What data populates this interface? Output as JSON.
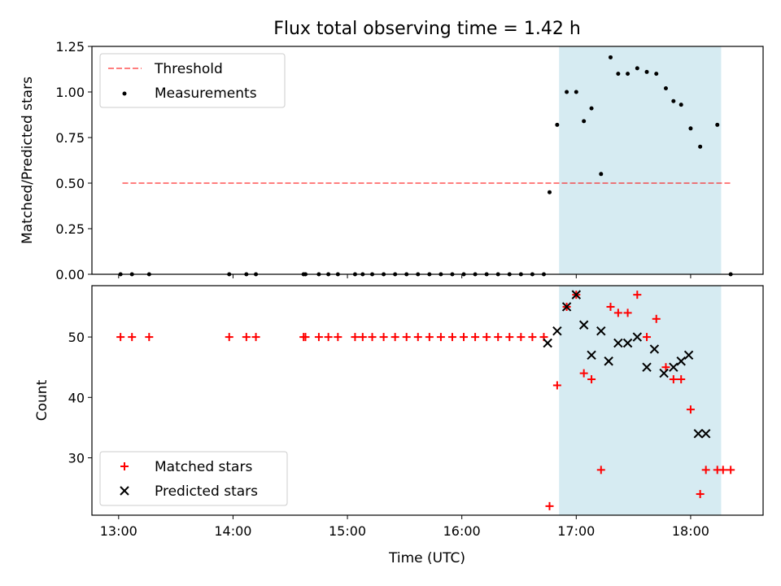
{
  "title": "Flux total observing time = 1.42 h",
  "xlabel": "Time (UTC)",
  "x_ticks": [
    "13:00",
    "14:00",
    "15:00",
    "16:00",
    "17:00",
    "18:00"
  ],
  "colors": {
    "span": "#add8e6",
    "threshold": "#ff0000",
    "measurements": "#000000",
    "matched": "#ff0000",
    "predicted": "#000000"
  },
  "chart_data": [
    {
      "type": "scatter",
      "panel": "top",
      "ylabel": "Matched/Predicted stars",
      "xlim": [
        "12:46",
        "18:38"
      ],
      "ylim": [
        0,
        1.25
      ],
      "y_ticks": [
        "0.00",
        "0.25",
        "0.50",
        "0.75",
        "1.00",
        "1.25"
      ],
      "legend_position": "upper-left",
      "highlight_span": [
        "16:51",
        "18:16"
      ],
      "threshold": {
        "name": "Threshold",
        "value": 0.5,
        "x_range": [
          "13:02",
          "18:22"
        ]
      },
      "series": [
        {
          "name": "Measurements",
          "x": [
            "13:01",
            "13:07",
            "13:16",
            "13:58",
            "14:07",
            "14:12",
            "14:37",
            "14:38",
            "14:45",
            "14:50",
            "14:55",
            "15:04",
            "15:08",
            "15:13",
            "15:19",
            "15:25",
            "15:31",
            "15:37",
            "15:43",
            "15:49",
            "15:55",
            "16:01",
            "16:07",
            "16:13",
            "16:19",
            "16:25",
            "16:31",
            "16:37",
            "16:43",
            "16:46",
            "16:50",
            "16:55",
            "17:00",
            "17:04",
            "17:08",
            "17:13",
            "17:18",
            "17:22",
            "17:27",
            "17:32",
            "17:37",
            "17:42",
            "17:47",
            "17:51",
            "17:55",
            "18:00",
            "18:05",
            "18:14",
            "18:21"
          ],
          "y": [
            0,
            0,
            0,
            0,
            0,
            0,
            0,
            0,
            0,
            0,
            0,
            0,
            0,
            0,
            0,
            0,
            0,
            0,
            0,
            0,
            0,
            0,
            0,
            0,
            0,
            0,
            0,
            0,
            0,
            0.45,
            0.82,
            1.0,
            1.0,
            0.84,
            0.91,
            0.55,
            1.19,
            1.1,
            1.1,
            1.13,
            1.11,
            1.1,
            1.02,
            0.95,
            0.93,
            0.8,
            0.7,
            0.82,
            0
          ]
        }
      ]
    },
    {
      "type": "scatter",
      "panel": "bottom",
      "ylabel": "Count",
      "xlim": [
        "12:46",
        "18:38"
      ],
      "ylim": [
        20.5,
        58.5
      ],
      "y_ticks": [
        "30",
        "40",
        "50"
      ],
      "legend_position": "lower-left",
      "highlight_span": [
        "16:51",
        "18:16"
      ],
      "series": [
        {
          "name": "Matched stars",
          "marker": "plus",
          "x": [
            "13:01",
            "13:07",
            "13:16",
            "13:58",
            "14:07",
            "14:12",
            "14:37",
            "14:38",
            "14:45",
            "14:50",
            "14:55",
            "15:04",
            "15:08",
            "15:13",
            "15:19",
            "15:25",
            "15:31",
            "15:37",
            "15:43",
            "15:49",
            "15:55",
            "16:01",
            "16:07",
            "16:13",
            "16:19",
            "16:25",
            "16:31",
            "16:37",
            "16:43",
            "16:46",
            "16:50",
            "16:55",
            "17:00",
            "17:04",
            "17:08",
            "17:13",
            "17:18",
            "17:22",
            "17:27",
            "17:32",
            "17:37",
            "17:42",
            "17:47",
            "17:51",
            "17:55",
            "18:00",
            "18:05",
            "18:08",
            "18:14",
            "18:17",
            "18:21"
          ],
          "y": [
            50,
            50,
            50,
            50,
            50,
            50,
            50,
            50,
            50,
            50,
            50,
            50,
            50,
            50,
            50,
            50,
            50,
            50,
            50,
            50,
            50,
            50,
            50,
            50,
            50,
            50,
            50,
            50,
            50,
            22,
            42,
            55,
            57,
            44,
            43,
            28,
            55,
            54,
            54,
            57,
            50,
            53,
            45,
            43,
            43,
            38,
            24,
            28,
            28,
            28,
            28
          ]
        },
        {
          "name": "Predicted stars",
          "marker": "cross",
          "x": [
            "16:45",
            "16:50",
            "16:55",
            "17:00",
            "17:04",
            "17:08",
            "17:13",
            "17:17",
            "17:22",
            "17:27",
            "17:32",
            "17:37",
            "17:41",
            "17:46",
            "17:51",
            "17:55",
            "17:59",
            "18:04",
            "18:08"
          ],
          "y": [
            49,
            51,
            55,
            57,
            52,
            47,
            51,
            46,
            49,
            49,
            50,
            45,
            48,
            44,
            45,
            46,
            47,
            34,
            34
          ]
        }
      ]
    }
  ]
}
